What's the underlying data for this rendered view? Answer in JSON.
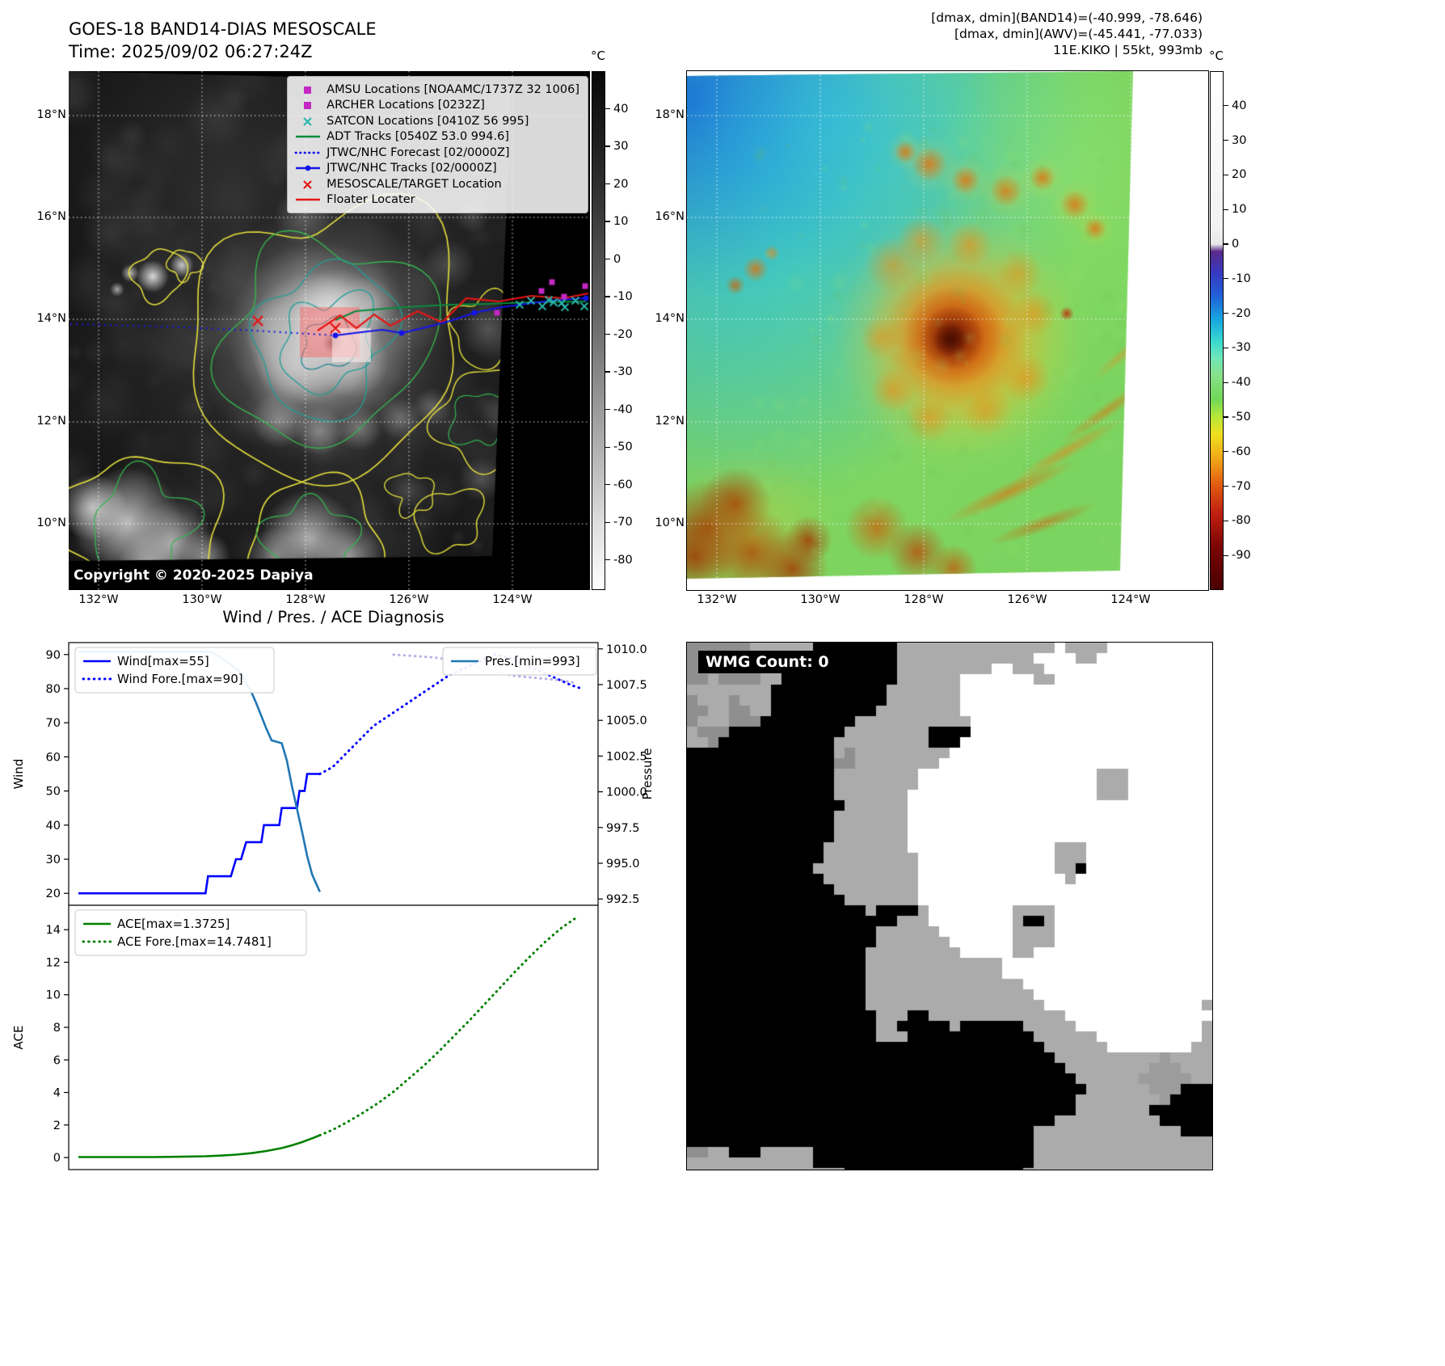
{
  "band14_panel": {
    "title_line1": "GOES-18 BAND14-DIAS MESOSCALE",
    "title_line2": "Time: 2025/09/02 06:27:24Z",
    "copyright": "Copyright © 2020-2025 Dapiya",
    "legend_items": [
      {
        "label": "AMSU Locations [NOAAMC/1737Z 32 1006]",
        "marker": "square",
        "color": "#c428c4"
      },
      {
        "label": "ARCHER Locations [0232Z]",
        "marker": "square",
        "color": "#c428c4"
      },
      {
        "label": "SATCON Locations [0410Z 56 995]",
        "marker": "x",
        "color": "#2ab8ae"
      },
      {
        "label": "ADT Tracks [0540Z 53.0 994.6]",
        "marker": "line",
        "color": "#0a8a3c"
      },
      {
        "label": "JTWC/NHC Forecast [02/0000Z]",
        "marker": "dotted",
        "color": "#1414e6"
      },
      {
        "label": "JTWC/NHC Tracks [02/0000Z]",
        "marker": "line-dot",
        "color": "#1414e6"
      },
      {
        "label": "MESOSCALE/TARGET Location",
        "marker": "x",
        "color": "#e61414"
      },
      {
        "label": "Floater Locater",
        "marker": "line",
        "color": "#e61414"
      }
    ],
    "lat_ticks": [
      "18°N",
      "16°N",
      "14°N",
      "12°N",
      "10°N"
    ],
    "lon_ticks": [
      "132°W",
      "130°W",
      "128°W",
      "126°W",
      "124°W"
    ],
    "colorbar": {
      "unit": "°C",
      "ticks": [
        "40",
        "30",
        "20",
        "10",
        "0",
        "-10",
        "-20",
        "-30",
        "-40",
        "-50",
        "-60",
        "-70",
        "-80"
      ]
    }
  },
  "awv_panel": {
    "header_line1": "[dmax, dmin](BAND14)=(-40.999, -78.646)",
    "header_line2": "[dmax, dmin](AWV)=(-45.441, -77.033)",
    "header_line3": "11E.KIKO | 55kt, 993mb",
    "lat_ticks": [
      "18°N",
      "16°N",
      "14°N",
      "12°N",
      "10°N"
    ],
    "lon_ticks": [
      "132°W",
      "130°W",
      "128°W",
      "126°W",
      "124°W"
    ],
    "colorbar": {
      "unit": "°C",
      "ticks": [
        "40",
        "30",
        "20",
        "10",
        "0",
        "-10",
        "-20",
        "-30",
        "-40",
        "-50",
        "-60",
        "-70",
        "-80",
        "-90"
      ]
    }
  },
  "diagnosis": {
    "title": "Wind / Pres. / ACE Diagnosis"
  },
  "wmg": {
    "label": "WMG Count: 0"
  },
  "chart_data": [
    {
      "type": "line",
      "title": "Wind / Pres. / ACE Diagnosis",
      "x_range": [
        0,
        100
      ],
      "axes": {
        "left": {
          "label": "Wind",
          "range": [
            16.5,
            93.5
          ],
          "ticks": [
            90,
            80,
            70,
            60,
            50,
            40,
            30,
            20
          ]
        },
        "right": {
          "label": "Pressure",
          "range": [
            992.06,
            1010.44
          ],
          "ticks": [
            1010.0,
            1007.5,
            1005.0,
            1002.5,
            1000.0,
            997.5,
            995.0,
            992.5
          ]
        }
      },
      "series": [
        {
          "name": "Wind[max=55]",
          "axis": "left",
          "style": "solid",
          "color": "#0000ff",
          "in_legend": true,
          "points": [
            [
              0,
              20
            ],
            [
              25,
              20
            ],
            [
              25.5,
              25
            ],
            [
              30,
              25
            ],
            [
              31,
              30
            ],
            [
              32,
              30
            ],
            [
              33,
              35
            ],
            [
              36,
              35
            ],
            [
              36.5,
              40
            ],
            [
              39.5,
              40
            ],
            [
              40,
              45
            ],
            [
              43,
              45
            ],
            [
              43.5,
              50
            ],
            [
              44.5,
              50
            ],
            [
              45,
              55
            ],
            [
              47.5,
              55
            ]
          ]
        },
        {
          "name": "Wind Fore.[max=90]",
          "axis": "left",
          "style": "dotted",
          "color": "#0000ff",
          "in_legend": true,
          "points": [
            [
              47.5,
              55
            ],
            [
              50,
              57
            ],
            [
              52,
              60
            ],
            [
              54,
              63
            ],
            [
              56,
              66
            ],
            [
              58,
              69
            ],
            [
              61,
              72
            ],
            [
              64,
              75
            ],
            [
              67,
              78
            ],
            [
              70,
              81
            ],
            [
              73,
              84
            ],
            [
              76,
              86
            ],
            [
              79,
              88
            ],
            [
              82,
              90
            ],
            [
              85,
              89
            ],
            [
              88,
              87
            ],
            [
              91,
              85
            ],
            [
              94,
              83
            ],
            [
              97,
              81
            ],
            [
              99,
              80
            ]
          ]
        },
        {
          "name": "Pres.[min=993]",
          "axis": "right",
          "style": "solid",
          "color": "#1f77b4",
          "in_legend": true,
          "points": [
            [
              0,
              1009.8
            ],
            [
              26,
              1009.8
            ],
            [
              28,
              1009.4
            ],
            [
              30,
              1008.9
            ],
            [
              32,
              1008.3
            ],
            [
              33,
              1007.6
            ],
            [
              34,
              1007.0
            ],
            [
              35,
              1006.2
            ],
            [
              36,
              1005.3
            ],
            [
              37,
              1004.4
            ],
            [
              38,
              1003.6
            ],
            [
              40,
              1003.4
            ],
            [
              41,
              1002.2
            ],
            [
              42,
              1000.4
            ],
            [
              43,
              998.8
            ],
            [
              44,
              997.2
            ],
            [
              45,
              995.5
            ],
            [
              46,
              994.2
            ],
            [
              47,
              993.4
            ],
            [
              47.5,
              993.0
            ]
          ]
        },
        {
          "name": "Pres. Fore.",
          "axis": "right",
          "style": "dotted",
          "color": "#b9b0e6",
          "in_legend": false,
          "points": [
            [
              62,
              1009.6
            ],
            [
              66,
              1009.5
            ],
            [
              70,
              1009.4
            ],
            [
              74,
              1009.2
            ],
            [
              83,
              1008.3
            ],
            [
              86,
              1008.1
            ],
            [
              89,
              1008.0
            ],
            [
              92,
              1007.9
            ],
            [
              95,
              1007.8
            ],
            [
              98,
              1007.6
            ]
          ]
        }
      ]
    },
    {
      "type": "line",
      "x_range": [
        0,
        100
      ],
      "axes": {
        "left": {
          "label": "ACE",
          "range": [
            -0.74,
            15.5
          ],
          "ticks": [
            14,
            12,
            10,
            8,
            6,
            4,
            2,
            0
          ]
        }
      },
      "series": [
        {
          "name": "ACE[max=1.3725]",
          "axis": "left",
          "style": "solid",
          "color": "#008000",
          "in_legend": true,
          "points": [
            [
              0,
              0.03
            ],
            [
              15,
              0.03
            ],
            [
              20,
              0.05
            ],
            [
              25,
              0.08
            ],
            [
              28,
              0.12
            ],
            [
              31,
              0.18
            ],
            [
              34,
              0.27
            ],
            [
              37,
              0.4
            ],
            [
              40,
              0.58
            ],
            [
              42,
              0.75
            ],
            [
              44,
              0.95
            ],
            [
              46,
              1.18
            ],
            [
              47.5,
              1.3725
            ]
          ]
        },
        {
          "name": "ACE Fore.[max=14.7481]",
          "axis": "left",
          "style": "dotted",
          "color": "#008000",
          "in_legend": true,
          "points": [
            [
              47.5,
              1.3725
            ],
            [
              50,
              1.7
            ],
            [
              53,
              2.2
            ],
            [
              56,
              2.75
            ],
            [
              59,
              3.35
            ],
            [
              62,
              4.05
            ],
            [
              65,
              4.85
            ],
            [
              68,
              5.65
            ],
            [
              71,
              6.55
            ],
            [
              74,
              7.5
            ],
            [
              77,
              8.45
            ],
            [
              80,
              9.45
            ],
            [
              83,
              10.45
            ],
            [
              86,
              11.45
            ],
            [
              89,
              12.4
            ],
            [
              92,
              13.3
            ],
            [
              95,
              14.1
            ],
            [
              98,
              14.7481
            ]
          ]
        }
      ]
    }
  ]
}
